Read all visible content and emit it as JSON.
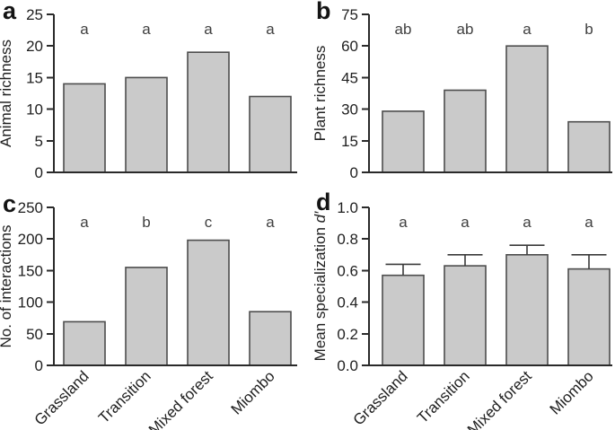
{
  "figure": {
    "background": "#ffffff",
    "colors": {
      "bar_fill": "#cacaca",
      "bar_stroke": "#4d4d4d",
      "axis": "#2a2a2a",
      "tick_text": "#1f1f1f",
      "sig_letter": "#404040",
      "error_bar": "#3a3a3a",
      "panel_letter": "#141414"
    }
  },
  "chart_data": [
    {
      "type": "bar",
      "panel_label": "a",
      "ylabel": "Animal richness",
      "categories": [
        "Grassland",
        "Transition",
        "Mixed forest",
        "Miombo"
      ],
      "values": [
        14,
        15,
        19,
        12
      ],
      "bar_annotations": [
        "a",
        "a",
        "a",
        "a"
      ],
      "ylim": [
        0,
        25
      ],
      "yticks": [
        0,
        5,
        10,
        15,
        20,
        25
      ],
      "ytick_labels": [
        "0",
        "5",
        "10",
        "15",
        "20",
        "25"
      ],
      "x_tick_labels_shown": false,
      "grid": false
    },
    {
      "type": "bar",
      "panel_label": "b",
      "ylabel": "Plant richness",
      "categories": [
        "Grassland",
        "Transition",
        "Mixed forest",
        "Miombo"
      ],
      "values": [
        29,
        39,
        60,
        24
      ],
      "bar_annotations": [
        "ab",
        "ab",
        "a",
        "b"
      ],
      "ylim": [
        0,
        75
      ],
      "yticks": [
        0,
        15,
        30,
        45,
        60,
        75
      ],
      "ytick_labels": [
        "0",
        "15",
        "30",
        "45",
        "60",
        "75"
      ],
      "x_tick_labels_shown": false,
      "grid": false
    },
    {
      "type": "bar",
      "panel_label": "c",
      "ylabel": "No. of interactions",
      "categories": [
        "Grassland",
        "Transition",
        "Mixed forest",
        "Miombo"
      ],
      "values": [
        69,
        155,
        198,
        85
      ],
      "bar_annotations": [
        "a",
        "b",
        "c",
        "a"
      ],
      "ylim": [
        0,
        250
      ],
      "yticks": [
        0,
        50,
        100,
        150,
        200,
        250
      ],
      "ytick_labels": [
        "0",
        "50",
        "100",
        "150",
        "200",
        "250"
      ],
      "x_tick_labels_shown": true,
      "grid": false
    },
    {
      "type": "bar",
      "panel_label": "d",
      "ylabel": "Mean specialization d′",
      "ylabel_parts": [
        {
          "text": "Mean specialization ",
          "italic": false
        },
        {
          "text": "d′",
          "italic": true
        }
      ],
      "categories": [
        "Grassland",
        "Transition",
        "Mixed forest",
        "Miombo"
      ],
      "values": [
        0.57,
        0.63,
        0.7,
        0.61
      ],
      "error_bar_tops": [
        0.64,
        0.7,
        0.76,
        0.7
      ],
      "bar_annotations": [
        "a",
        "a",
        "a",
        "a"
      ],
      "ylim": [
        0,
        1.0
      ],
      "yticks": [
        0,
        0.2,
        0.4,
        0.6,
        0.8,
        1.0
      ],
      "ytick_labels": [
        "0.0",
        "0.2",
        "0.4",
        "0.6",
        "0.8",
        "1.0"
      ],
      "x_tick_labels_shown": true,
      "grid": false
    }
  ]
}
